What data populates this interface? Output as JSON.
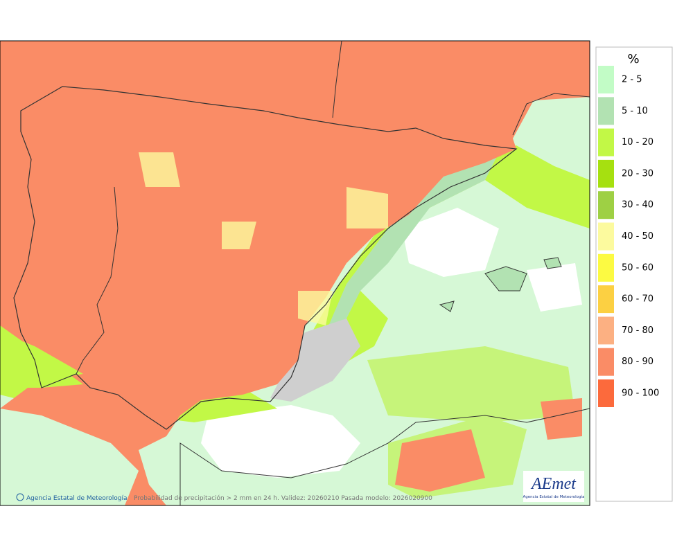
{
  "legend": {
    "title": "%",
    "items": [
      {
        "label": "2 - 5",
        "color": "#c2fcc6"
      },
      {
        "label": "5 - 10",
        "color": "#b2e2b2"
      },
      {
        "label": "10 - 20",
        "color": "#c2f846"
      },
      {
        "label": "20 - 30",
        "color": "#a6e010"
      },
      {
        "label": "30 - 40",
        "color": "#9ed044"
      },
      {
        "label": "40 - 50",
        "color": "#fcfa9e"
      },
      {
        "label": "50 - 60",
        "color": "#fcfa42"
      },
      {
        "label": "60 - 70",
        "color": "#fcd042"
      },
      {
        "label": "70 - 80",
        "color": "#fcb082"
      },
      {
        "label": "80 - 90",
        "color": "#fa8c66"
      },
      {
        "label": "90 - 100",
        "color": "#fc6a3c"
      }
    ]
  },
  "footer": {
    "credit": "Agencia Estatal de Meteorología",
    "caption": "Probabilidad de precipitación > 2 mm en 24 h. Validez: 20260210 Pasada modelo: 2026020900"
  },
  "logo": {
    "name": "AEmet",
    "subtitle": "Agencia Estatal de Meteorología"
  }
}
